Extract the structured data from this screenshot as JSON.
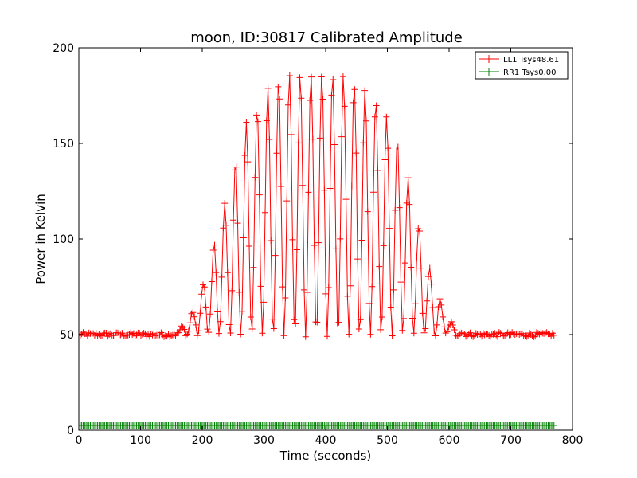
{
  "chart_data": {
    "type": "line",
    "title": "moon, ID:30817 Calibrated Amplitude",
    "xlabel": "Time (seconds)",
    "ylabel": "Power in Kelvin",
    "xlim": [
      0,
      800
    ],
    "ylim": [
      0,
      200
    ],
    "xticks": [
      0,
      100,
      200,
      300,
      400,
      500,
      600,
      700,
      800
    ],
    "yticks": [
      0,
      50,
      100,
      150,
      200
    ],
    "grid": false,
    "legend_position": "top-right",
    "marker": "+",
    "x_range_of_samples": [
      0,
      770
    ],
    "samples": 330,
    "series": [
      {
        "name": "LL1 Tsys48.61",
        "color": "#ff0000",
        "baseline": 50,
        "noise": 1.2,
        "oscillation_period_s": 17.5,
        "envelope": [
          [
            0,
            0
          ],
          [
            150,
            0
          ],
          [
            160,
            2
          ],
          [
            175,
            6
          ],
          [
            190,
            16
          ],
          [
            210,
            36
          ],
          [
            230,
            60
          ],
          [
            250,
            86
          ],
          [
            270,
            110
          ],
          [
            290,
            120
          ],
          [
            310,
            130
          ],
          [
            330,
            134
          ],
          [
            350,
            136
          ],
          [
            370,
            137
          ],
          [
            390,
            137
          ],
          [
            410,
            136
          ],
          [
            430,
            135
          ],
          [
            450,
            131
          ],
          [
            470,
            126
          ],
          [
            490,
            119
          ],
          [
            510,
            108
          ],
          [
            525,
            92
          ],
          [
            545,
            68
          ],
          [
            560,
            42
          ],
          [
            580,
            23
          ],
          [
            598,
            8
          ],
          [
            615,
            2
          ],
          [
            630,
            0
          ],
          [
            770,
            0
          ]
        ]
      },
      {
        "name": "RR1 Tsys0.00",
        "color": "#008000",
        "constant": 2.5
      }
    ]
  }
}
